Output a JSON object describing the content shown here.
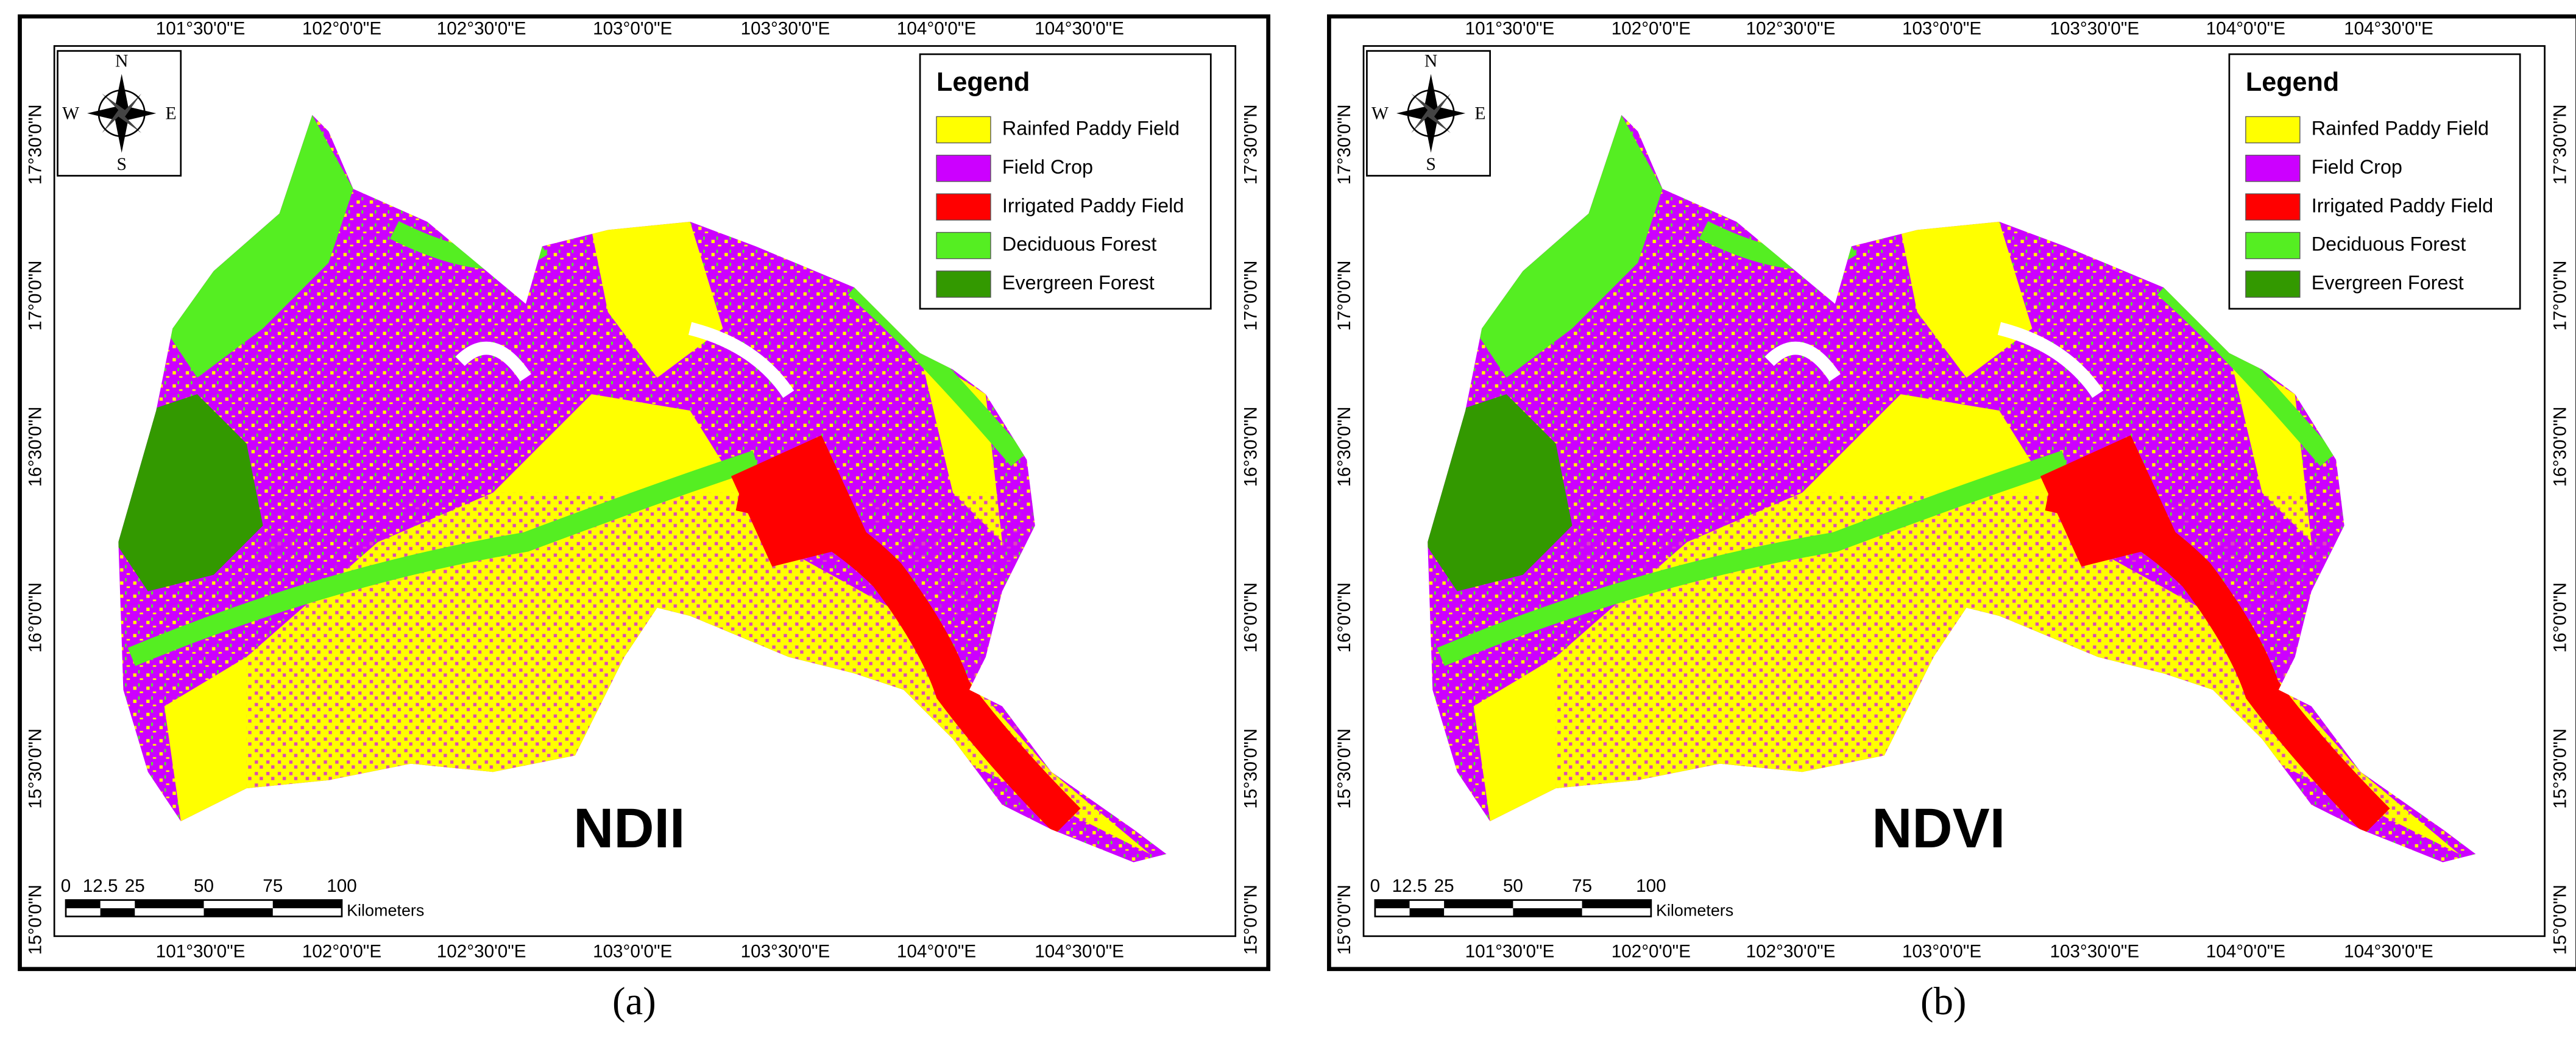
{
  "panels": [
    {
      "caption": "(a)",
      "map_label": "NDII",
      "compass": {
        "n": "N",
        "s": "S",
        "e": "E",
        "w": "W"
      },
      "legend": {
        "title": "Legend",
        "items": [
          {
            "label": "Rainfed Paddy Field",
            "color": "#ffff00"
          },
          {
            "label": "Field Crop",
            "color": "#cc00ff"
          },
          {
            "label": "Irrigated Paddy Field",
            "color": "#ff0000"
          },
          {
            "label": "Deciduous Forest",
            "color": "#55ee22"
          },
          {
            "label": "Evergreen Forest",
            "color": "#339900"
          }
        ]
      },
      "lon_labels": [
        "101°30'0\"E",
        "102°0'0\"E",
        "102°30'0\"E",
        "103°0'0\"E",
        "103°30'0\"E",
        "104°0'0\"E",
        "104°30'0\"E"
      ],
      "lat_labels": [
        "17°30'0\"N",
        "17°0'0\"N",
        "16°30'0\"N",
        "16°0'0\"N",
        "15°30'0\"N",
        "15°0'0\"N"
      ],
      "scale": {
        "ticks": [
          0,
          12.5,
          25,
          50,
          75,
          100
        ],
        "unit": "Kilometers"
      }
    },
    {
      "caption": "(b)",
      "map_label": "NDVI",
      "compass": {
        "n": "N",
        "s": "S",
        "e": "E",
        "w": "W"
      },
      "legend": {
        "title": "Legend",
        "items": [
          {
            "label": "Rainfed Paddy Field",
            "color": "#ffff00"
          },
          {
            "label": "Field Crop",
            "color": "#cc00ff"
          },
          {
            "label": "Irrigated Paddy Field",
            "color": "#ff0000"
          },
          {
            "label": "Deciduous Forest",
            "color": "#55ee22"
          },
          {
            "label": "Evergreen Forest",
            "color": "#339900"
          }
        ]
      },
      "lon_labels": [
        "101°30'0\"E",
        "102°0'0\"E",
        "102°30'0\"E",
        "103°0'0\"E",
        "103°30'0\"E",
        "104°0'0\"E",
        "104°30'0\"E"
      ],
      "lat_labels": [
        "17°30'0\"N",
        "17°0'0\"N",
        "16°30'0\"N",
        "16°0'0\"N",
        "15°30'0\"N",
        "15°0'0\"N"
      ],
      "scale": {
        "ticks": [
          0,
          12.5,
          25,
          50,
          75,
          100
        ],
        "unit": "Kilometers"
      }
    }
  ]
}
